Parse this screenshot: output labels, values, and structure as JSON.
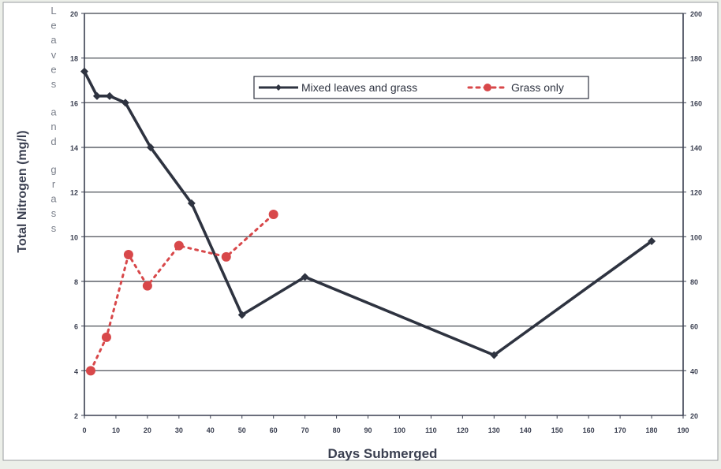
{
  "chart_data": {
    "type": "line",
    "xlabel": "Days Submerged",
    "ylabel": "Total Nitrogen (mg/l)",
    "left_vertical_label": "Leaves and grass",
    "xlim": [
      0,
      190
    ],
    "ylim": [
      2,
      20
    ],
    "y2lim": [
      20,
      200
    ],
    "x_ticks": [
      0,
      10,
      20,
      30,
      40,
      50,
      60,
      70,
      80,
      90,
      100,
      110,
      120,
      130,
      140,
      150,
      160,
      170,
      180,
      190
    ],
    "y_ticks": [
      2,
      4,
      6,
      8,
      10,
      12,
      14,
      16,
      18,
      20
    ],
    "y2_ticks": [
      20,
      40,
      60,
      80,
      100,
      120,
      140,
      160,
      180,
      200
    ],
    "grid": true,
    "legend_position": "top-center",
    "series": [
      {
        "name": "Mixed leaves and grass",
        "axis": "left",
        "color": "#2e3340",
        "style": "solid",
        "marker": "diamond",
        "x": [
          0,
          4,
          8,
          13,
          21,
          34,
          50,
          70,
          130,
          180
        ],
        "y": [
          17.4,
          16.3,
          16.3,
          16.0,
          14.0,
          11.5,
          6.5,
          8.2,
          4.7,
          9.8
        ]
      },
      {
        "name": "Grass only",
        "axis": "left",
        "color": "#d8484a",
        "style": "dotted",
        "marker": "circle",
        "x": [
          2,
          7,
          14,
          20,
          30,
          45,
          60
        ],
        "y": [
          4.0,
          5.5,
          9.2,
          7.8,
          9.6,
          9.1,
          11.0
        ]
      }
    ]
  }
}
